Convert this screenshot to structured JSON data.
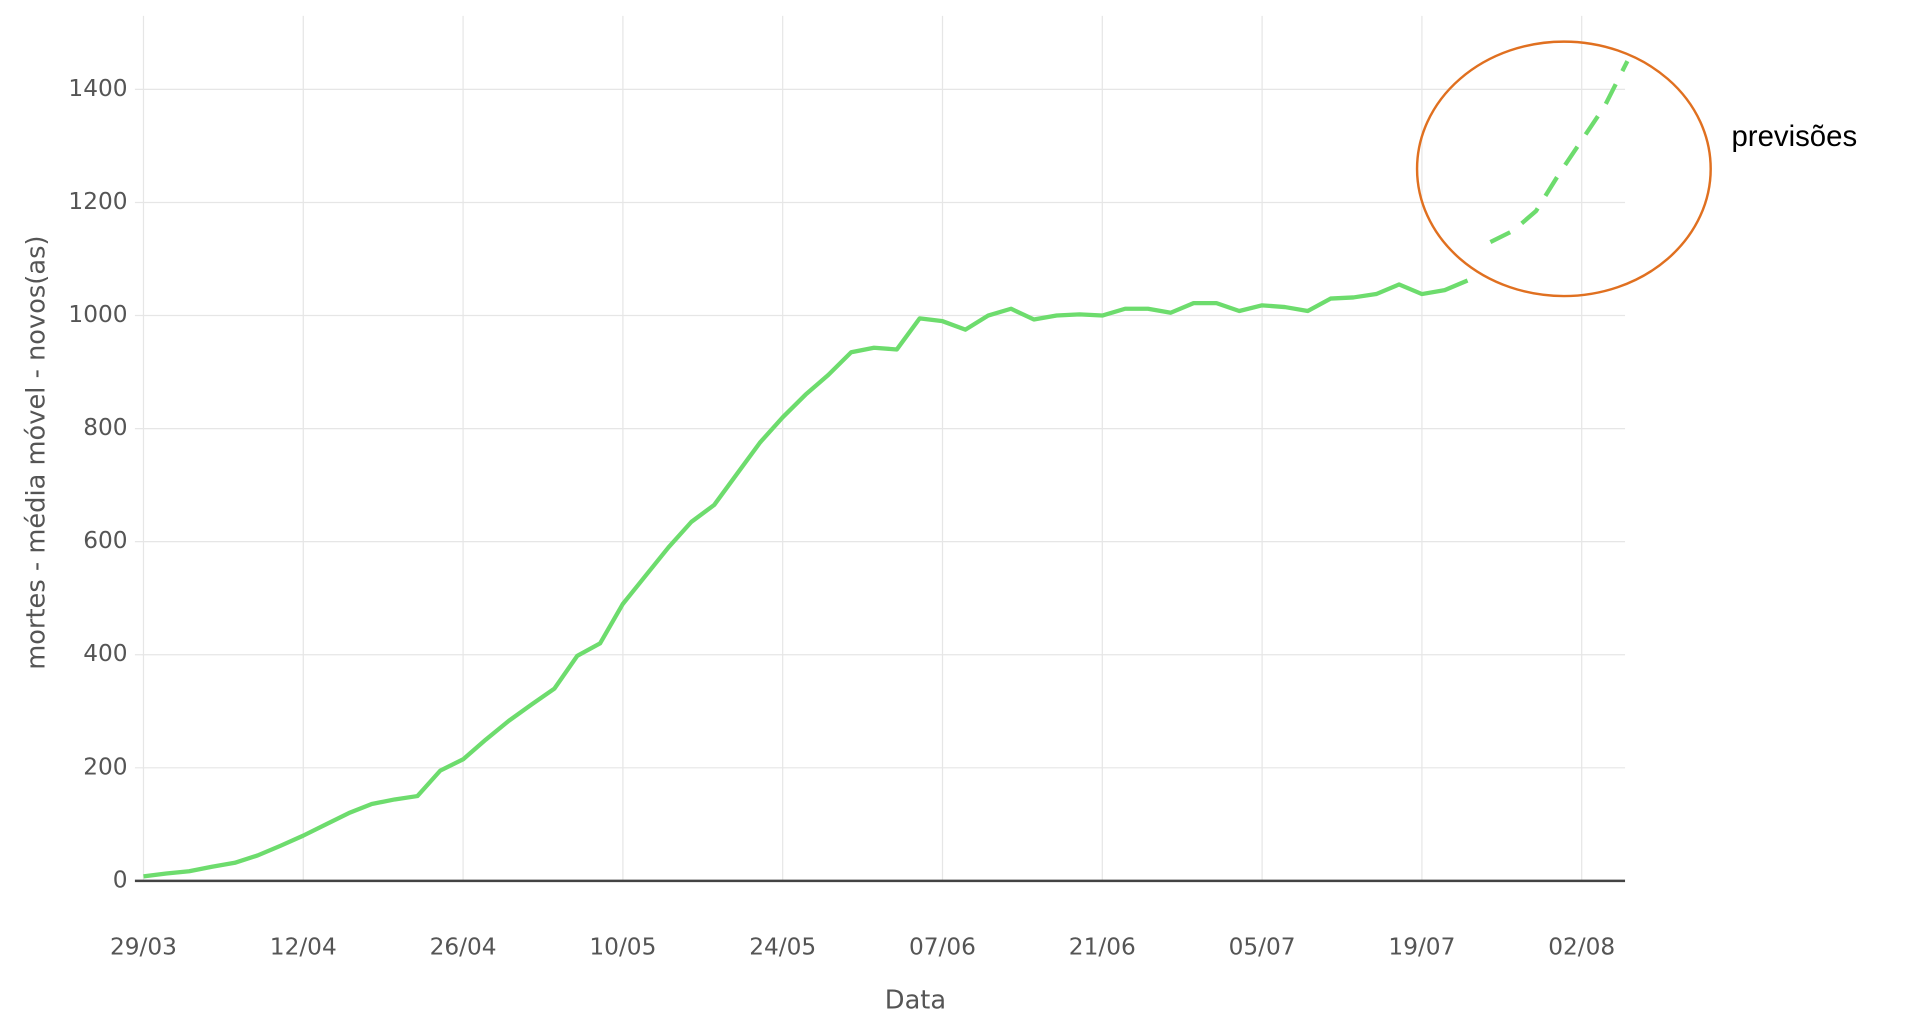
{
  "chart_data": {
    "type": "line",
    "x_label": "Data",
    "y_label": "mortes - média móvel - novos(as)",
    "annotation": "previsões",
    "categories": [
      "29/03",
      "31/03",
      "02/04",
      "04/04",
      "06/04",
      "08/04",
      "10/04",
      "12/04",
      "14/04",
      "16/04",
      "18/04",
      "20/04",
      "22/04",
      "24/04",
      "26/04",
      "28/04",
      "30/04",
      "02/05",
      "04/05",
      "06/05",
      "08/05",
      "10/05",
      "12/05",
      "14/05",
      "16/05",
      "18/05",
      "20/05",
      "22/05",
      "24/05",
      "26/05",
      "28/05",
      "30/05",
      "01/06",
      "03/06",
      "05/06",
      "07/06",
      "09/06",
      "11/06",
      "13/06",
      "15/06",
      "17/06",
      "19/06",
      "21/06",
      "23/06",
      "25/06",
      "27/06",
      "29/06",
      "01/07",
      "03/07",
      "05/07",
      "07/07",
      "09/07",
      "11/07",
      "13/07",
      "15/07",
      "17/07",
      "19/07",
      "21/07",
      "23/07",
      "25/07",
      "27/07",
      "29/07",
      "31/07",
      "02/08",
      "04/08",
      "06/08"
    ],
    "series": [
      {
        "color": "#6ddc6d",
        "dash": false,
        "values": [
          8,
          13,
          17,
          25,
          32,
          45,
          62,
          80,
          100,
          120,
          136,
          144,
          150,
          195,
          215,
          250,
          283,
          312,
          340,
          398,
          420,
          490,
          540,
          590,
          635,
          665,
          720,
          775,
          820,
          860,
          895,
          935,
          943,
          940,
          995,
          990,
          975,
          1000,
          1012,
          993,
          1000,
          1002,
          1000,
          1012,
          1012,
          1005,
          1022,
          1022,
          1008,
          1018,
          1015,
          1008,
          1030,
          1032,
          1038,
          1055,
          1038,
          1045,
          1062,
          null,
          null,
          null,
          null,
          null,
          null,
          null
        ]
      },
      {
        "color": "#6ddc6d",
        "dash": true,
        "values": [
          null,
          null,
          null,
          null,
          null,
          null,
          null,
          null,
          null,
          null,
          null,
          null,
          null,
          null,
          null,
          null,
          null,
          null,
          null,
          null,
          null,
          null,
          null,
          null,
          null,
          null,
          null,
          null,
          null,
          null,
          null,
          null,
          null,
          null,
          null,
          null,
          null,
          null,
          null,
          null,
          null,
          null,
          null,
          null,
          null,
          null,
          null,
          null,
          null,
          null,
          null,
          null,
          null,
          null,
          null,
          null,
          null,
          null,
          null,
          1130,
          1150,
          1185,
          1250,
          1310,
          1370,
          1450
        ]
      }
    ],
    "ylim": [
      0,
      1530
    ],
    "yticks": [
      0,
      200,
      400,
      600,
      800,
      1000,
      1200,
      1400
    ],
    "grid": true
  }
}
